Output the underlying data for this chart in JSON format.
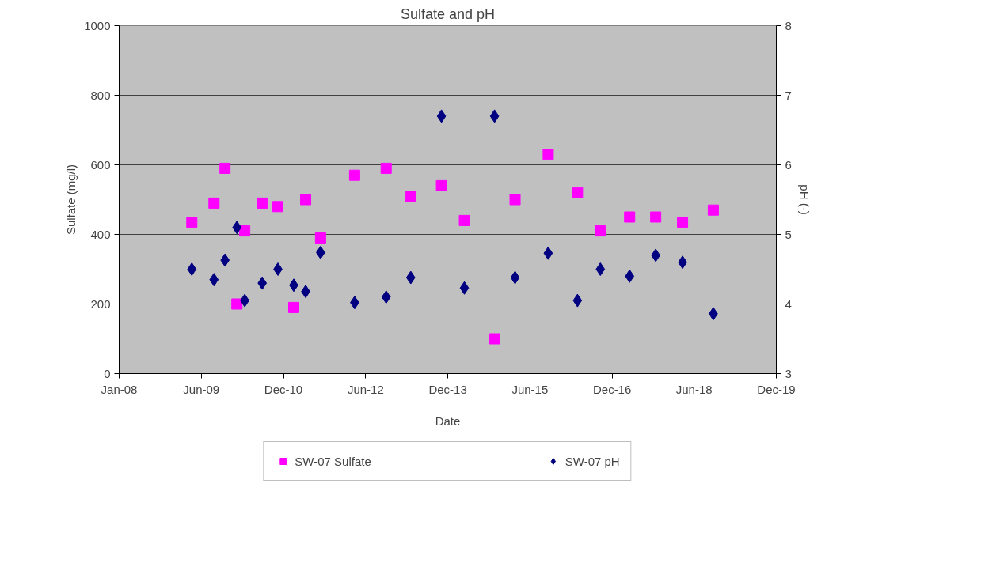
{
  "chart_data": {
    "type": "scatter",
    "title": "Sulfate and pH",
    "xlabel": "Date",
    "ylabel": "Sulfate (mg/l)",
    "y2label": "pH (-)",
    "x": [
      "2009-04-27",
      "2009-09-21",
      "2009-12-03",
      "2010-02-20",
      "2010-04-13",
      "2010-08-07",
      "2010-11-19",
      "2011-03-04",
      "2011-05-22",
      "2011-08-29",
      "2012-04-11",
      "2012-11-06",
      "2013-04-18",
      "2013-11-08",
      "2014-04-09",
      "2014-10-26",
      "2015-03-11",
      "2015-10-17",
      "2016-04-28",
      "2016-09-27",
      "2017-04-09",
      "2017-09-29",
      "2018-03-26",
      "2018-10-16"
    ],
    "series": [
      {
        "name": "SW-07 Sulfate",
        "color": "#ff00ff",
        "marker": "square",
        "values": [
          435,
          490,
          590,
          200,
          410,
          490,
          480,
          190,
          500,
          390,
          570,
          590,
          510,
          540,
          440,
          100,
          500,
          630,
          520,
          410,
          450,
          450,
          435,
          470
        ]
      },
      {
        "name": "SW-07 pH",
        "color": "#000080",
        "marker": "diamond",
        "axis": "y2",
        "values": [
          4.5,
          4.35,
          4.63,
          5.1,
          4.05,
          4.3,
          4.5,
          4.27,
          4.18,
          4.74,
          4.02,
          4.1,
          4.38,
          6.7,
          4.23,
          6.7,
          4.38,
          4.73,
          4.05,
          4.5,
          4.4,
          4.7,
          4.6,
          3.86
        ]
      }
    ],
    "xlim": [
      "2008-01-01",
      "2019-12-08"
    ],
    "xticks": [
      {
        "value": "2008-01-01",
        "label": "Jan-08"
      },
      {
        "value": "2009-06-29",
        "label": "Jun-09"
      },
      {
        "value": "2010-12-26",
        "label": "Dec-10"
      },
      {
        "value": "2012-06-23",
        "label": "Jun-12"
      },
      {
        "value": "2013-12-20",
        "label": "Dec-13"
      },
      {
        "value": "2015-06-18",
        "label": "Jun-15"
      },
      {
        "value": "2016-12-14",
        "label": "Dec-16"
      },
      {
        "value": "2018-06-11",
        "label": "Jun-18"
      },
      {
        "value": "2019-12-08",
        "label": "Dec-19"
      }
    ],
    "ylim": [
      0,
      1000
    ],
    "yticks": [
      0,
      200,
      400,
      600,
      800,
      1000
    ],
    "y2lim": [
      3,
      8
    ],
    "y2ticks": [
      3,
      4,
      5,
      6,
      7,
      8
    ],
    "grid": "y",
    "legend": "bottom"
  }
}
